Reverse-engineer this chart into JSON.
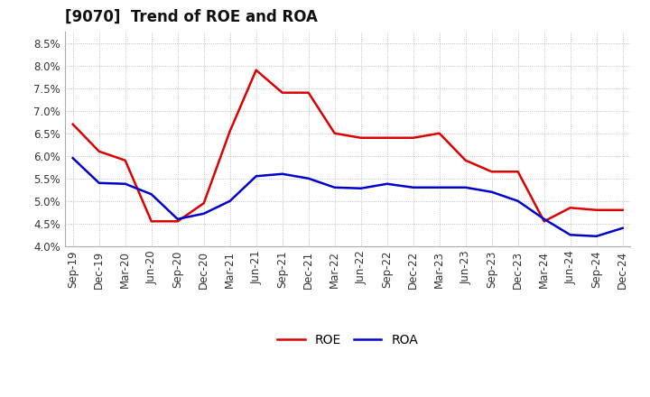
{
  "title": "[9070]  Trend of ROE and ROA",
  "labels": [
    "Sep-19",
    "Dec-19",
    "Mar-20",
    "Jun-20",
    "Sep-20",
    "Dec-20",
    "Mar-21",
    "Jun-21",
    "Sep-21",
    "Dec-21",
    "Mar-22",
    "Jun-22",
    "Sep-22",
    "Dec-22",
    "Mar-23",
    "Jun-23",
    "Sep-23",
    "Dec-23",
    "Mar-24",
    "Jun-24",
    "Sep-24",
    "Dec-24"
  ],
  "ROE": [
    6.7,
    6.1,
    5.9,
    4.55,
    4.55,
    4.95,
    6.55,
    7.9,
    7.4,
    7.4,
    6.5,
    6.4,
    6.4,
    6.4,
    6.5,
    5.9,
    5.65,
    5.65,
    4.55,
    4.85,
    4.8,
    4.8
  ],
  "ROA": [
    5.95,
    5.4,
    5.38,
    5.15,
    4.6,
    4.72,
    5.0,
    5.55,
    5.6,
    5.5,
    5.3,
    5.28,
    5.38,
    5.3,
    5.3,
    5.3,
    5.2,
    5.0,
    4.6,
    4.25,
    4.22,
    4.4
  ],
  "roe_color": "#dd0000",
  "roa_color": "#0000cc",
  "ylim_min": 4.0,
  "ylim_max": 8.75,
  "yticks": [
    4.0,
    4.5,
    5.0,
    5.5,
    6.0,
    6.5,
    7.0,
    7.5,
    8.0,
    8.5
  ],
  "bg_color": "#ffffff",
  "plot_bg_color": "#ffffff",
  "grid_color": "#999999",
  "title_fontsize": 12,
  "legend_fontsize": 10,
  "tick_fontsize": 8.5
}
